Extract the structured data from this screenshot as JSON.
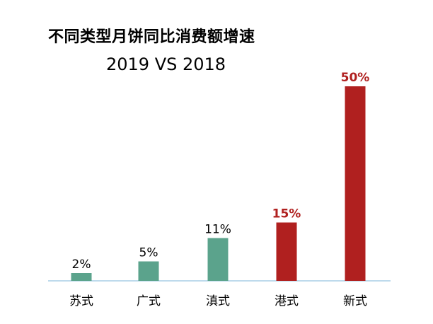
{
  "chart_data": {
    "type": "bar",
    "title": "不同类型月饼同比消费额增速",
    "subtitle": "2019 VS 2018",
    "categories": [
      "苏式",
      "广式",
      "滇式",
      "港式",
      "新式"
    ],
    "values": [
      2,
      5,
      11,
      15,
      50
    ],
    "value_labels": [
      "2%",
      "5%",
      "11%",
      "15%",
      "50%"
    ],
    "ylim": [
      0,
      50
    ],
    "xlabel": "",
    "ylabel": "",
    "grid": false,
    "legend": "none",
    "bar_colors": [
      "#5ba38c",
      "#5ba38c",
      "#5ba38c",
      "#b0201f",
      "#b0201f"
    ],
    "label_colors": [
      "#000000",
      "#000000",
      "#000000",
      "#b0201f",
      "#b0201f"
    ],
    "label_bold": [
      false,
      false,
      false,
      true,
      true
    ],
    "axis_color": "#a9cde6"
  }
}
